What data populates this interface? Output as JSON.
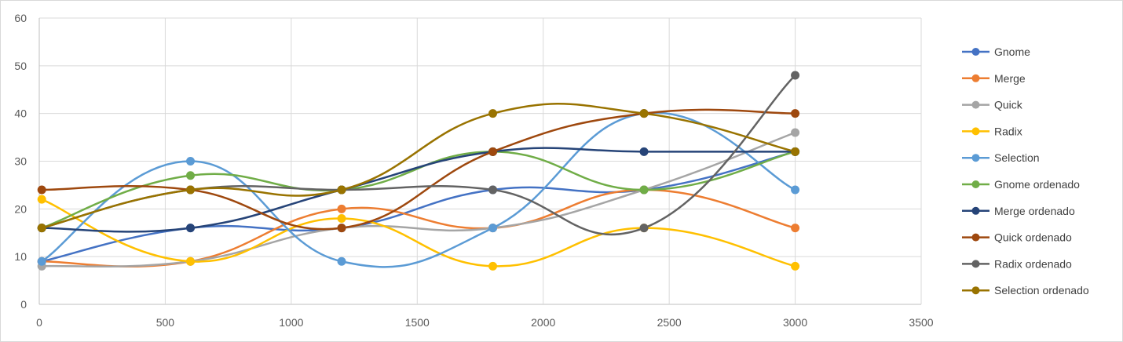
{
  "chart_data": {
    "type": "line",
    "smooth": true,
    "markers": true,
    "grid": true,
    "legend_position": "right",
    "xlim": [
      0,
      3500
    ],
    "ylim": [
      0,
      60
    ],
    "x_ticks": [
      0,
      500,
      1000,
      1500,
      2000,
      2500,
      3000,
      3500
    ],
    "y_ticks": [
      0,
      10,
      20,
      30,
      40,
      50,
      60
    ],
    "x": [
      10,
      600,
      1200,
      1800,
      2400,
      3000
    ],
    "series": [
      {
        "name": "Gnome",
        "color": "#4472c4",
        "values": [
          9,
          16,
          16,
          24,
          24,
          32
        ]
      },
      {
        "name": "Merge",
        "color": "#ed7d31",
        "values": [
          9,
          9,
          20,
          16,
          24,
          16
        ]
      },
      {
        "name": "Quick",
        "color": "#a5a5a5",
        "values": [
          8,
          9,
          16,
          16,
          24,
          36
        ]
      },
      {
        "name": "Radix",
        "color": "#ffc000",
        "values": [
          22,
          9,
          18,
          8,
          16,
          8
        ]
      },
      {
        "name": "Selection",
        "color": "#5b9bd5",
        "values": [
          9,
          30,
          9,
          16,
          40,
          24
        ]
      },
      {
        "name": "Gnome ordenado",
        "color": "#70ad47",
        "values": [
          16,
          27,
          24,
          32,
          24,
          32
        ]
      },
      {
        "name": "Merge ordenado",
        "color": "#264478",
        "values": [
          16,
          16,
          24,
          32,
          32,
          32
        ]
      },
      {
        "name": "Quick ordenado",
        "color": "#9e480e",
        "values": [
          24,
          24,
          16,
          32,
          40,
          40
        ]
      },
      {
        "name": "Radix ordenado",
        "color": "#636363",
        "values": [
          16,
          24,
          24,
          24,
          16,
          48
        ]
      },
      {
        "name": "Selection ordenado",
        "color": "#997300",
        "values": [
          16,
          24,
          24,
          40,
          40,
          32
        ]
      }
    ]
  }
}
